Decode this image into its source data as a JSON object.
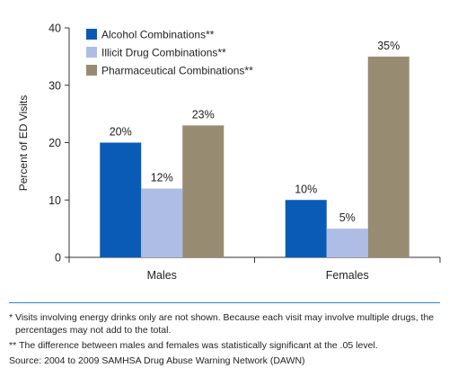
{
  "chart_data": {
    "type": "bar",
    "categories": [
      "Males",
      "Females"
    ],
    "series": [
      {
        "name": "Alcohol Combinations**",
        "values": [
          20,
          10
        ],
        "labels": [
          "20%",
          "10%"
        ],
        "color": "#0a5bb5"
      },
      {
        "name": "Illicit Drug Combinations**",
        "values": [
          12,
          5
        ],
        "labels": [
          "12%",
          "5%"
        ],
        "color": "#adbde6"
      },
      {
        "name": "Pharmaceutical Combinations**",
        "values": [
          23,
          35
        ],
        "labels": [
          "23%",
          "35%"
        ],
        "color": "#978c72"
      }
    ],
    "ylabel": "Percent of ED Visits",
    "xlabel": "",
    "ylim": [
      0,
      40
    ],
    "yticks": [
      0,
      10,
      20,
      30,
      40
    ],
    "grid": false,
    "legend": "top-left"
  },
  "footnotes": [
    {
      "mark": "* ",
      "text": "Visits involving energy drinks only are not shown. Because each visit may involve multiple drugs, the percentages may not add to the total."
    },
    {
      "mark": "** ",
      "text": "The difference between males and females was statistically significant at the .05 level."
    }
  ],
  "source": "Source: 2004 to 2009 SAMHSA Drug Abuse Warning Network (DAWN)"
}
